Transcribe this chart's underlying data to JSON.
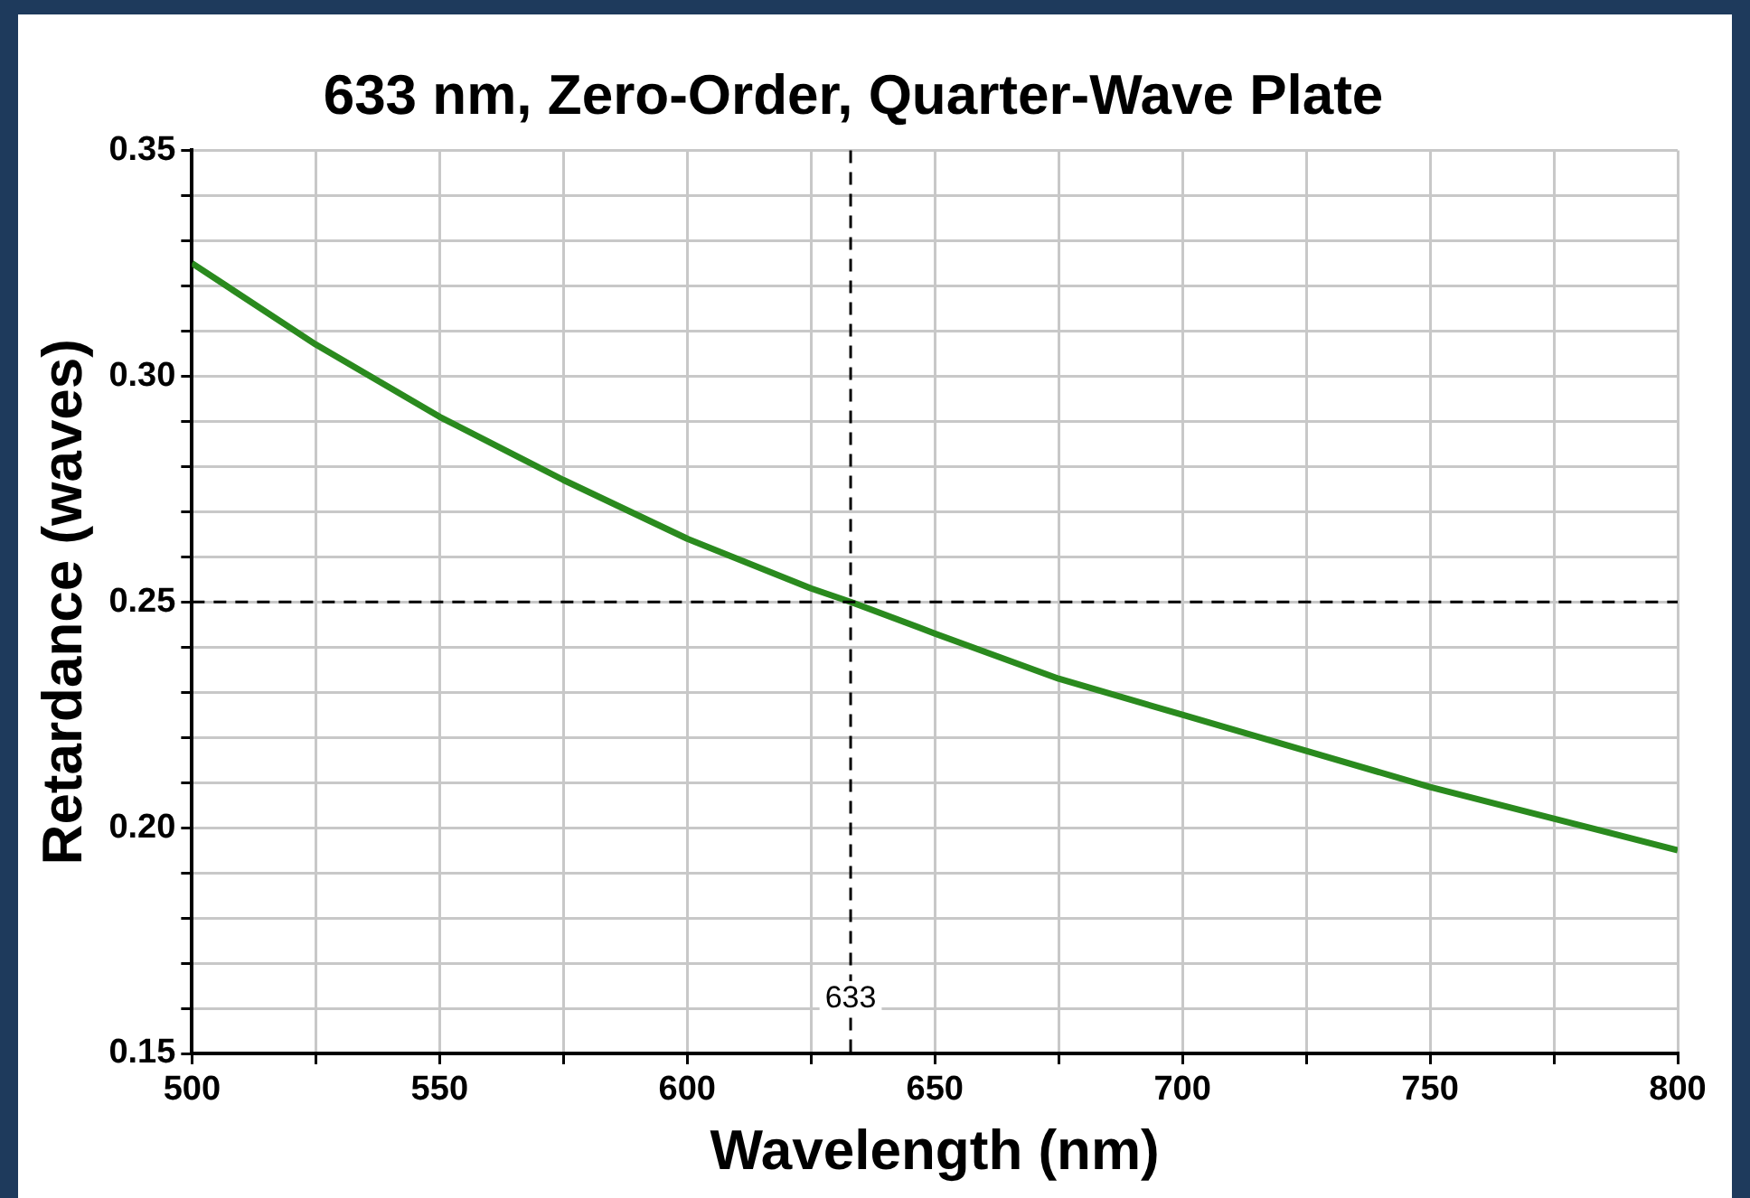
{
  "chart_data": {
    "type": "line",
    "title": "633 nm, Zero-Order, Quarter-Wave Plate",
    "xlabel": "Wavelength (nm)",
    "ylabel": "Retardance (waves)",
    "x": [
      500,
      525,
      550,
      575,
      600,
      625,
      633,
      650,
      675,
      700,
      725,
      750,
      775,
      800
    ],
    "series": [
      {
        "color": "#2a8a1e",
        "values": [
          0.325,
          0.307,
          0.291,
          0.277,
          0.264,
          0.253,
          0.25,
          0.243,
          0.233,
          0.225,
          0.217,
          0.209,
          0.202,
          0.195
        ]
      }
    ],
    "xlim": [
      500,
      800
    ],
    "ylim": [
      0.15,
      0.35
    ],
    "xticks": [
      500,
      {
        "value": 525,
        "label": null
      },
      550,
      {
        "value": 575,
        "label": null
      },
      600,
      {
        "value": 625,
        "label": null
      },
      650,
      {
        "value": 675,
        "label": null
      },
      700,
      {
        "value": 725,
        "label": null
      },
      750,
      {
        "value": 775,
        "label": null
      },
      800
    ],
    "yticks": [
      {
        "value": 0.15,
        "label": "0.15"
      },
      {
        "value": 0.16,
        "label": null
      },
      {
        "value": 0.17,
        "label": null
      },
      {
        "value": 0.18,
        "label": null
      },
      {
        "value": 0.19,
        "label": null
      },
      {
        "value": 0.2,
        "label": "0.20"
      },
      {
        "value": 0.21,
        "label": null
      },
      {
        "value": 0.22,
        "label": null
      },
      {
        "value": 0.23,
        "label": null
      },
      {
        "value": 0.24,
        "label": null
      },
      {
        "value": 0.25,
        "label": "0.25"
      },
      {
        "value": 0.26,
        "label": null
      },
      {
        "value": 0.27,
        "label": null
      },
      {
        "value": 0.28,
        "label": null
      },
      {
        "value": 0.29,
        "label": null
      },
      {
        "value": 0.3,
        "label": "0.30"
      },
      {
        "value": 0.31,
        "label": null
      },
      {
        "value": 0.32,
        "label": null
      },
      {
        "value": 0.33,
        "label": null
      },
      {
        "value": 0.34,
        "label": null
      },
      {
        "value": 0.35,
        "label": "0.35"
      }
    ],
    "ref_lines": [
      {
        "axis": "x",
        "value": 633,
        "label": "633",
        "color": "#000000",
        "line_style": "dashed"
      },
      {
        "axis": "y",
        "value": 0.25,
        "color": "#000000",
        "line_style": "dashed"
      }
    ],
    "grid": true,
    "legend": false,
    "marker": "none",
    "line_style": "solid"
  }
}
